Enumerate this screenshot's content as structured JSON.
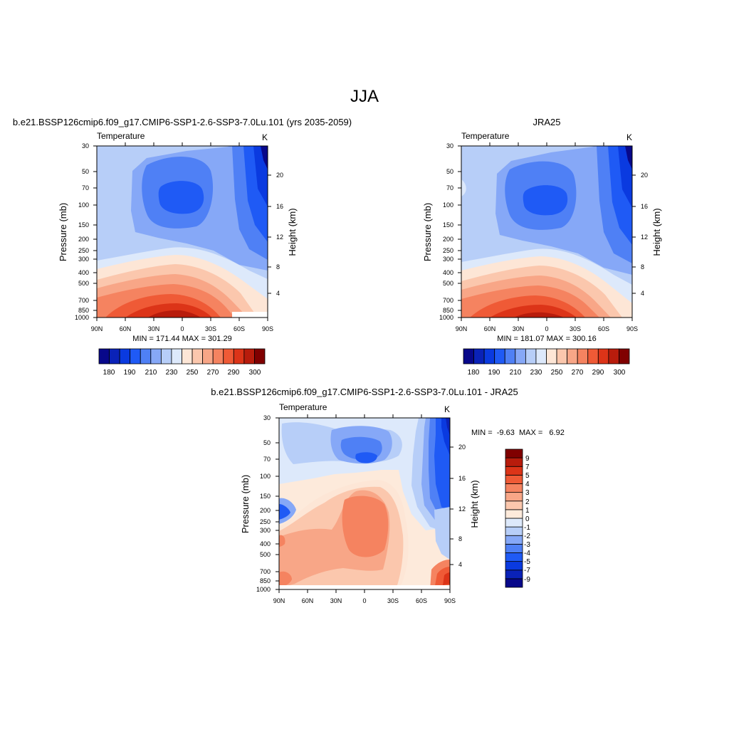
{
  "figure": {
    "title": "JJA"
  },
  "colors": {
    "abs": [
      "#08088a",
      "#0a22b8",
      "#0a3ae0",
      "#1f5af5",
      "#4f80f5",
      "#86a8f7",
      "#b7cef8",
      "#dde9fb",
      "#fde6d6",
      "#fbc7ad",
      "#f8a687",
      "#f58360",
      "#ef5a36",
      "#dc3418",
      "#b81c0c",
      "#800000"
    ],
    "diff": [
      "#08088a",
      "#0a22b8",
      "#0a3ae0",
      "#1f5af5",
      "#4f80f5",
      "#86a8f7",
      "#b7cef8",
      "#dde9fb",
      "#fdeadb",
      "#fbc7ad",
      "#f8a687",
      "#f58360",
      "#ef5a36",
      "#dc3418",
      "#b81c0c",
      "#800000"
    ]
  },
  "chart_data": [
    {
      "type": "heatmap",
      "title": "b.e21.BSSP126cmip6.f09_g17.CMIP6-SSP1-2.6-SSP3-7.0Lu.101 (yrs 2035-2059)",
      "left_string": "Temperature",
      "right_string": "K",
      "xlabel": "",
      "ylabel": "Pressure (mb)",
      "ylabel_right": "Height (km)",
      "x_ticks": [
        "90N",
        "60N",
        "30N",
        "0",
        "30S",
        "60S",
        "90S"
      ],
      "y_ticks": [
        "30",
        "50",
        "70",
        "100",
        "150",
        "200",
        "250",
        "300",
        "400",
        "500",
        "700",
        "850",
        "1000"
      ],
      "y_right_ticks": [
        "4",
        "8",
        "12",
        "16",
        "20"
      ],
      "ylim": [
        1000,
        30
      ],
      "stats": "MIN = 171.44  MAX = 301.29",
      "min": 171.44,
      "max": 301.29,
      "colorbar_labels": [
        "180",
        "190",
        "210",
        "230",
        "250",
        "270",
        "290",
        "300"
      ]
    },
    {
      "type": "heatmap",
      "title": "JRA25",
      "left_string": "Temperature",
      "right_string": "K",
      "xlabel": "",
      "ylabel": "Pressure (mb)",
      "ylabel_right": "Height (km)",
      "x_ticks": [
        "90N",
        "60N",
        "30N",
        "0",
        "30S",
        "60S",
        "90S"
      ],
      "y_ticks": [
        "30",
        "50",
        "70",
        "100",
        "150",
        "200",
        "250",
        "300",
        "400",
        "500",
        "700",
        "850",
        "1000"
      ],
      "y_right_ticks": [
        "4",
        "8",
        "12",
        "16",
        "20"
      ],
      "ylim": [
        1000,
        30
      ],
      "stats": "MIN = 181.07  MAX = 300.16",
      "min": 181.07,
      "max": 300.16,
      "colorbar_labels": [
        "180",
        "190",
        "210",
        "230",
        "250",
        "270",
        "290",
        "300"
      ]
    },
    {
      "type": "heatmap",
      "title": "b.e21.BSSP126cmip6.f09_g17.CMIP6-SSP1-2.6-SSP3-7.0Lu.101 - JRA25",
      "left_string": "Temperature",
      "right_string": "K",
      "xlabel": "",
      "ylabel": "Pressure (mb)",
      "ylabel_right": "Height (km)",
      "x_ticks": [
        "90N",
        "60N",
        "30N",
        "0",
        "30S",
        "60S",
        "90S"
      ],
      "y_ticks": [
        "30",
        "50",
        "70",
        "100",
        "150",
        "200",
        "250",
        "300",
        "400",
        "500",
        "700",
        "850",
        "1000"
      ],
      "y_right_ticks": [
        "4",
        "8",
        "12",
        "16",
        "20"
      ],
      "ylim": [
        1000,
        30
      ],
      "stats": "MIN =  -9.63  MAX =   6.92",
      "min": -9.63,
      "max": 6.92,
      "colorbar_labels": [
        "9",
        "7",
        "5",
        "4",
        "3",
        "2",
        "1",
        "0",
        "-1",
        "-2",
        "-3",
        "-4",
        "-5",
        "-7",
        "-9"
      ]
    }
  ]
}
